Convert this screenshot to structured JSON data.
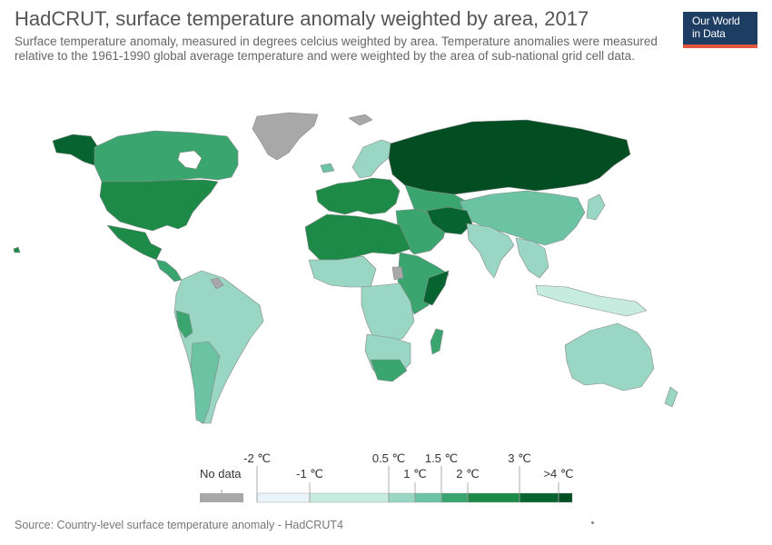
{
  "header": {
    "title": "HadCRUT, surface temperature anomaly weighted by area, 2017",
    "subtitle": "Surface temperature anomaly, measured in degrees celcius weighted by area. Temperature anomalies were measured relative to the 1961-1990 global average temperature and were weighted by the area of sub-national grid cell data."
  },
  "logo": {
    "line1": "Our World",
    "line2": "in Data"
  },
  "legend": {
    "no_data_label": "No data",
    "no_data_color": "#a8a8a8",
    "upper_ticks": [
      "-2 ℃",
      "0.5 ℃",
      "1.5 ℃",
      "3 ℃"
    ],
    "lower_ticks": [
      "-1 ℃",
      "1 ℃",
      "2 ℃",
      ">4 ℃"
    ],
    "bins": [
      {
        "from": -2,
        "to": -1,
        "color": "#e8f4fa"
      },
      {
        "from": -1,
        "to": 0.5,
        "color": "#c6ebdf"
      },
      {
        "from": 0.5,
        "to": 1,
        "color": "#99d6c3"
      },
      {
        "from": 1,
        "to": 1.5,
        "color": "#6cc3a3"
      },
      {
        "from": 1.5,
        "to": 2,
        "color": "#3aa56f"
      },
      {
        "from": 2,
        "to": 3,
        "color": "#1e8a48"
      },
      {
        "from": 3,
        "to": 4,
        "color": "#07632f"
      },
      {
        "from": 4,
        "to": 5,
        "color": "#024d22"
      }
    ]
  },
  "source": "Source: Country-level surface temperature anomaly - HadCRUT4"
}
